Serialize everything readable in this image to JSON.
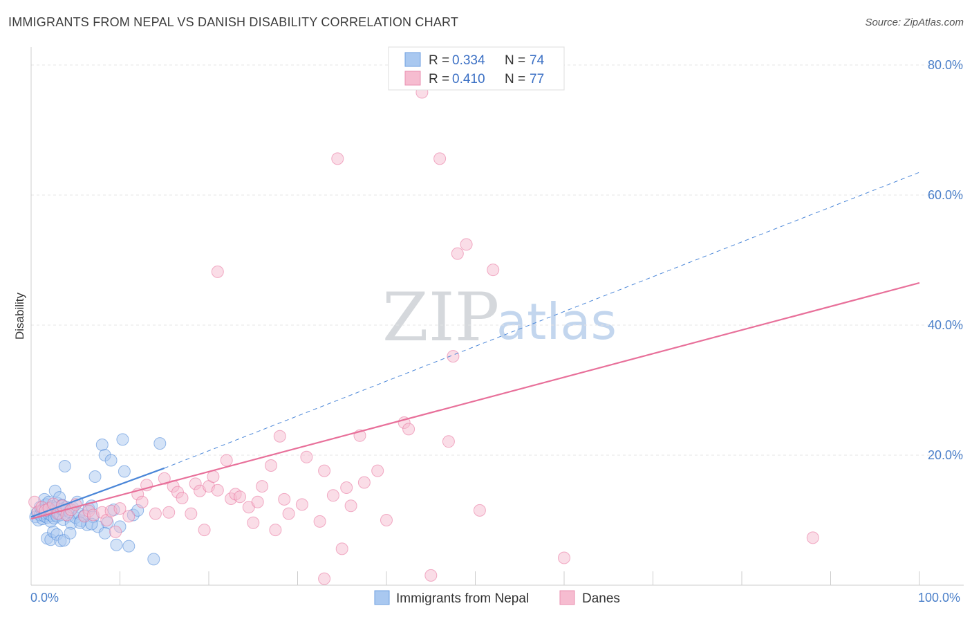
{
  "header": {
    "title": "IMMIGRANTS FROM NEPAL VS DANISH DISABILITY CORRELATION CHART",
    "source": "Source: ZipAtlas.com"
  },
  "watermark": {
    "zip": "ZIP",
    "atlas": "atlas"
  },
  "legend": {
    "rows": [
      {
        "r_label": "R = ",
        "r_value": "0.334",
        "n_label": "N = ",
        "n_value": "74",
        "color": "#a9c8f0"
      },
      {
        "r_label": "R = ",
        "r_value": "0.410",
        "n_label": "N = ",
        "n_value": "77",
        "color": "#f6bcd0"
      }
    ]
  },
  "bottom_legend": {
    "items": [
      {
        "label": "Immigrants from Nepal",
        "color": "#a9c8f0"
      },
      {
        "label": "Danes",
        "color": "#f6bcd0"
      }
    ]
  },
  "chart_data": {
    "type": "scatter",
    "title": "IMMIGRANTS FROM NEPAL VS DANISH DISABILITY CORRELATION CHART",
    "xlabel": "",
    "ylabel": "Disability",
    "xlim": [
      0,
      100
    ],
    "ylim": [
      0,
      82
    ],
    "x_tick_labels": [
      "0.0%",
      "100.0%"
    ],
    "y_ticks": [
      20,
      40,
      60,
      80
    ],
    "y_tick_labels": [
      "20.0%",
      "40.0%",
      "60.0%",
      "80.0%"
    ],
    "grid": true,
    "legend_position": "top-center",
    "series": [
      {
        "name": "Immigrants from Nepal",
        "color": "#4a86d8",
        "fill": "#a9c8f0",
        "r": 0.334,
        "n": 74,
        "trend": {
          "x": [
            0,
            15
          ],
          "y": [
            10.5,
            18.0
          ]
        },
        "trend_extension": {
          "x": [
            15,
            100
          ],
          "y": [
            18.0,
            63.5
          ]
        },
        "points": [
          [
            0.5,
            10.5
          ],
          [
            0.7,
            11.2
          ],
          [
            0.8,
            10.0
          ],
          [
            1.0,
            10.8
          ],
          [
            1.0,
            12.0
          ],
          [
            1.2,
            11.5
          ],
          [
            1.3,
            10.2
          ],
          [
            1.4,
            11.8
          ],
          [
            1.5,
            10.6
          ],
          [
            1.5,
            13.2
          ],
          [
            1.6,
            11.0
          ],
          [
            1.7,
            12.4
          ],
          [
            1.8,
            10.4
          ],
          [
            1.9,
            11.6
          ],
          [
            2.0,
            10.9
          ],
          [
            2.0,
            12.8
          ],
          [
            2.1,
            11.3
          ],
          [
            2.2,
            9.8
          ],
          [
            2.3,
            10.7
          ],
          [
            2.4,
            12.1
          ],
          [
            2.5,
            11.4
          ],
          [
            2.6,
            10.3
          ],
          [
            2.7,
            14.5
          ],
          [
            2.8,
            11.9
          ],
          [
            2.9,
            10.6
          ],
          [
            3.0,
            12.6
          ],
          [
            3.1,
            11.1
          ],
          [
            3.2,
            13.5
          ],
          [
            3.3,
            10.8
          ],
          [
            3.4,
            11.7
          ],
          [
            3.5,
            12.3
          ],
          [
            3.6,
            10.1
          ],
          [
            3.7,
            11.5
          ],
          [
            3.8,
            18.3
          ],
          [
            4.0,
            12.0
          ],
          [
            4.2,
            10.6
          ],
          [
            4.3,
            11.3
          ],
          [
            4.5,
            9.5
          ],
          [
            4.7,
            11.9
          ],
          [
            5.0,
            10.4
          ],
          [
            5.2,
            12.8
          ],
          [
            5.4,
            11.0
          ],
          [
            5.6,
            9.9
          ],
          [
            6.0,
            10.7
          ],
          [
            6.3,
            9.3
          ],
          [
            6.5,
            11.8
          ],
          [
            6.8,
            12.2
          ],
          [
            7.0,
            10.5
          ],
          [
            7.2,
            16.7
          ],
          [
            7.5,
            9.0
          ],
          [
            8.0,
            21.6
          ],
          [
            8.3,
            20.0
          ],
          [
            8.6,
            9.6
          ],
          [
            9.0,
            19.2
          ],
          [
            9.3,
            11.6
          ],
          [
            9.6,
            6.2
          ],
          [
            10.0,
            9.0
          ],
          [
            10.3,
            22.4
          ],
          [
            10.5,
            17.5
          ],
          [
            11.0,
            6.0
          ],
          [
            11.5,
            10.8
          ],
          [
            12.0,
            11.5
          ],
          [
            1.8,
            7.2
          ],
          [
            2.2,
            7.0
          ],
          [
            2.5,
            8.2
          ],
          [
            2.9,
            7.8
          ],
          [
            3.3,
            6.8
          ],
          [
            3.7,
            6.9
          ],
          [
            4.4,
            8.0
          ],
          [
            5.5,
            9.6
          ],
          [
            6.8,
            9.4
          ],
          [
            8.3,
            8.0
          ],
          [
            13.8,
            4.0
          ],
          [
            14.5,
            21.8
          ]
        ]
      },
      {
        "name": "Danes",
        "color": "#e8709a",
        "fill": "#f6bcd0",
        "r": 0.41,
        "n": 77,
        "trend": {
          "x": [
            0,
            100
          ],
          "y": [
            10.2,
            46.5
          ]
        },
        "points": [
          [
            0.4,
            12.8
          ],
          [
            0.8,
            11.3
          ],
          [
            1.2,
            12.0
          ],
          [
            1.6,
            11.5
          ],
          [
            2.0,
            11.8
          ],
          [
            2.5,
            12.5
          ],
          [
            3.0,
            11.0
          ],
          [
            3.5,
            12.2
          ],
          [
            4.0,
            10.8
          ],
          [
            4.5,
            11.6
          ],
          [
            5.0,
            12.4
          ],
          [
            6.0,
            10.6
          ],
          [
            6.5,
            11.4
          ],
          [
            7.0,
            10.8
          ],
          [
            8.0,
            11.2
          ],
          [
            8.5,
            10.0
          ],
          [
            9.0,
            11.4
          ],
          [
            9.5,
            8.2
          ],
          [
            10.0,
            11.8
          ],
          [
            11.0,
            10.6
          ],
          [
            12.0,
            14.0
          ],
          [
            12.5,
            12.8
          ],
          [
            13.0,
            15.4
          ],
          [
            14.0,
            11.0
          ],
          [
            15.0,
            16.4
          ],
          [
            15.5,
            11.2
          ],
          [
            16.0,
            15.2
          ],
          [
            16.5,
            14.3
          ],
          [
            17.0,
            13.4
          ],
          [
            18.0,
            11.0
          ],
          [
            18.5,
            15.6
          ],
          [
            19.0,
            14.5
          ],
          [
            19.5,
            8.5
          ],
          [
            20.0,
            15.2
          ],
          [
            20.5,
            16.7
          ],
          [
            21.0,
            14.6
          ],
          [
            22.0,
            19.2
          ],
          [
            22.5,
            13.3
          ],
          [
            23.0,
            14.0
          ],
          [
            23.5,
            13.6
          ],
          [
            24.5,
            12.0
          ],
          [
            25.0,
            9.6
          ],
          [
            25.5,
            12.8
          ],
          [
            26.0,
            15.2
          ],
          [
            27.0,
            18.4
          ],
          [
            27.5,
            8.5
          ],
          [
            28.0,
            22.9
          ],
          [
            28.5,
            13.2
          ],
          [
            29.0,
            11.0
          ],
          [
            30.5,
            12.4
          ],
          [
            31.0,
            19.7
          ],
          [
            32.5,
            9.8
          ],
          [
            33.0,
            17.6
          ],
          [
            34.0,
            13.8
          ],
          [
            35.0,
            5.6
          ],
          [
            35.5,
            15.0
          ],
          [
            36.0,
            12.2
          ],
          [
            37.0,
            23.0
          ],
          [
            37.5,
            15.8
          ],
          [
            39.0,
            17.6
          ],
          [
            40.0,
            10.0
          ],
          [
            42.0,
            25.0
          ],
          [
            42.5,
            24.0
          ],
          [
            44.0,
            75.8
          ],
          [
            45.0,
            1.5
          ],
          [
            46.0,
            65.6
          ],
          [
            47.0,
            22.1
          ],
          [
            47.5,
            35.2
          ],
          [
            48.0,
            51.0
          ],
          [
            49.0,
            52.4
          ],
          [
            50.5,
            11.5
          ],
          [
            21.0,
            48.2
          ],
          [
            34.5,
            65.6
          ],
          [
            52.0,
            48.5
          ],
          [
            60.0,
            4.2
          ],
          [
            33.0,
            1.0
          ],
          [
            88.0,
            7.3
          ]
        ]
      }
    ]
  }
}
